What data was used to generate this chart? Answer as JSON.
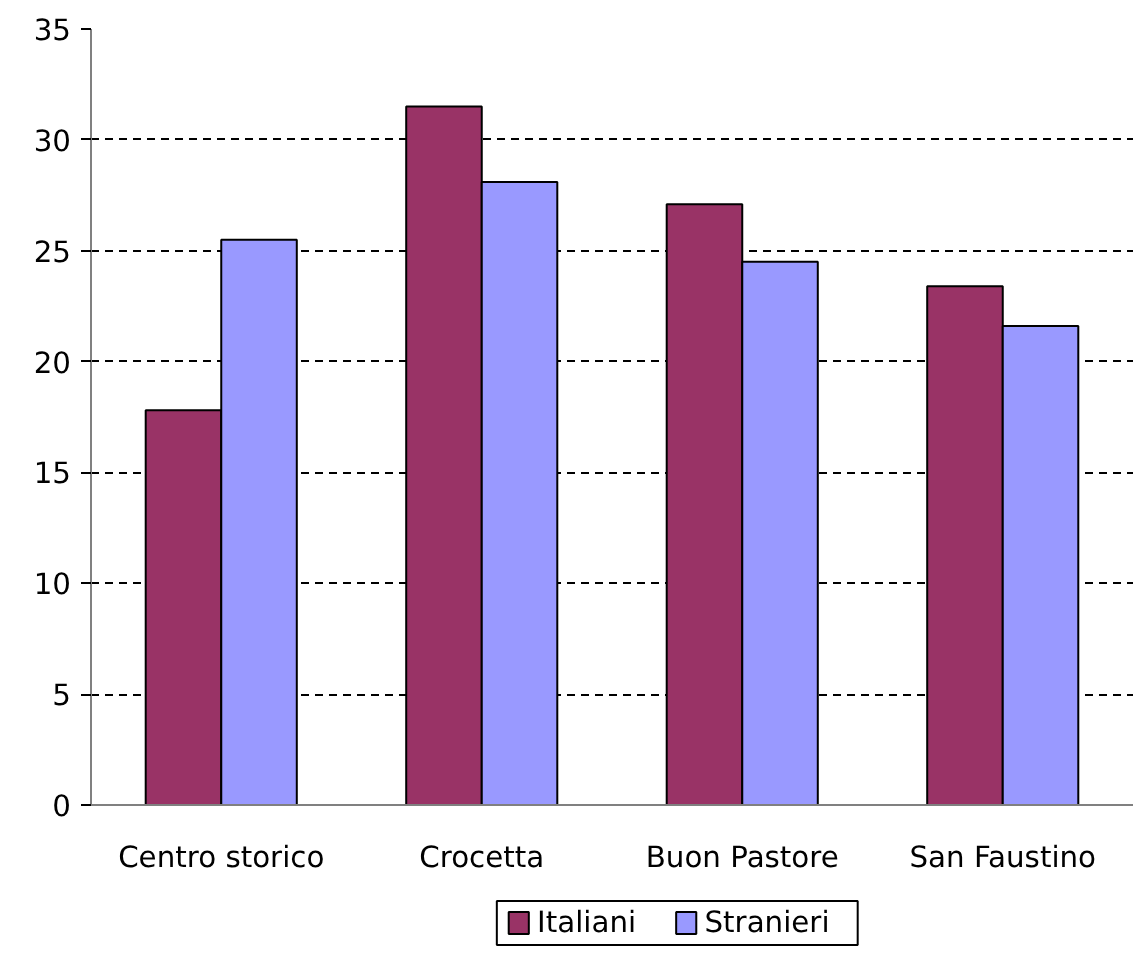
{
  "chart_data": {
    "type": "bar",
    "categories": [
      "Centro storico",
      "Crocetta",
      "Buon Pastore",
      "San Faustino"
    ],
    "series": [
      {
        "name": "Italiani",
        "color": "#993366",
        "values": [
          17.8,
          31.5,
          27.1,
          23.4
        ]
      },
      {
        "name": "Stranieri",
        "color": "#9999ff",
        "values": [
          25.5,
          28.1,
          24.5,
          21.6
        ]
      }
    ],
    "ylim": [
      0,
      35
    ],
    "yticks": [
      0,
      5,
      10,
      15,
      20,
      25,
      30,
      35
    ],
    "grid": "y",
    "legend": "bottom"
  }
}
